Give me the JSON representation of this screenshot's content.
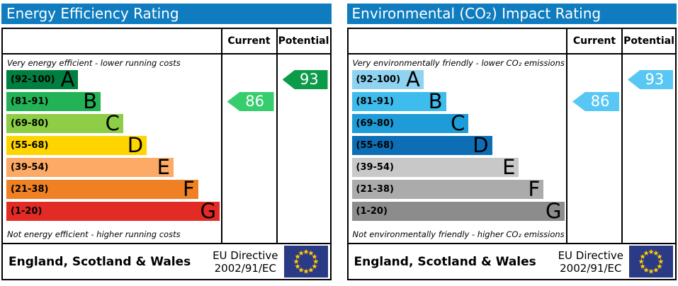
{
  "colors": {
    "title_bar_blue": "#0F7CBF",
    "eu_flag_blue": "#2B3A84",
    "eu_star_yellow": "#FFCC00"
  },
  "panels": [
    {
      "title": "Energy Efficiency Rating",
      "columns": {
        "current": "Current",
        "potential": "Potential"
      },
      "top_note": "Very energy efficient - lower running costs",
      "bottom_note": "Not energy efficient - higher running costs",
      "bands": [
        {
          "grade": "A",
          "range": "(92-100)",
          "color": "#008040",
          "width_pct": 33.5
        },
        {
          "grade": "B",
          "range": "(81-91)",
          "color": "#23B255",
          "width_pct": 44
        },
        {
          "grade": "C",
          "range": "(69-80)",
          "color": "#8DCE46",
          "width_pct": 54.5
        },
        {
          "grade": "D",
          "range": "(55-68)",
          "color": "#FFD500",
          "width_pct": 65.5
        },
        {
          "grade": "E",
          "range": "(39-54)",
          "color": "#FCAA65",
          "width_pct": 78
        },
        {
          "grade": "F",
          "range": "(21-38)",
          "color": "#EF8023",
          "width_pct": 89.5
        },
        {
          "grade": "G",
          "range": "(1-20)",
          "color": "#E32B25",
          "width_pct": 99.5
        }
      ],
      "current": {
        "value": "86",
        "band": "B",
        "color": "#37CD6E"
      },
      "potential": {
        "value": "93",
        "band": "A",
        "color": "#0C9C49"
      },
      "footer": {
        "region": "England, Scotland & Wales",
        "directive_line1": "EU Directive",
        "directive_line2": "2002/91/EC"
      }
    },
    {
      "title": "Environmental (CO₂) Impact Rating",
      "columns": {
        "current": "Current",
        "potential": "Potential"
      },
      "top_note": "Very environmentally friendly - lower CO₂ emissions",
      "bottom_note": "Not environmentally friendly - higher CO₂ emissions",
      "bands": [
        {
          "grade": "A",
          "range": "(92-100)",
          "color": "#8FD3F1",
          "width_pct": 33.5
        },
        {
          "grade": "B",
          "range": "(81-91)",
          "color": "#3FBCEE",
          "width_pct": 44
        },
        {
          "grade": "C",
          "range": "(69-80)",
          "color": "#1E9CD8",
          "width_pct": 54.5
        },
        {
          "grade": "D",
          "range": "(55-68)",
          "color": "#0D6EB5",
          "width_pct": 65.5
        },
        {
          "grade": "E",
          "range": "(39-54)",
          "color": "#C8C8C8",
          "width_pct": 78
        },
        {
          "grade": "F",
          "range": "(21-38)",
          "color": "#ABABAB",
          "width_pct": 89.5
        },
        {
          "grade": "G",
          "range": "(1-20)",
          "color": "#8C8C8C",
          "width_pct": 99.5
        }
      ],
      "current": {
        "value": "86",
        "band": "B",
        "color": "#58C7F3"
      },
      "potential": {
        "value": "93",
        "band": "A",
        "color": "#58C7F3"
      },
      "footer": {
        "region": "England, Scotland & Wales",
        "directive_line1": "EU Directive",
        "directive_line2": "2002/91/EC"
      }
    }
  ],
  "chart_data": [
    {
      "type": "bar",
      "title": "Energy Efficiency Rating",
      "categories": [
        "A",
        "B",
        "C",
        "D",
        "E",
        "F",
        "G"
      ],
      "band_ranges": [
        "92-100",
        "81-91",
        "69-80",
        "55-68",
        "39-54",
        "21-38",
        "1-20"
      ],
      "series": [
        {
          "name": "Current",
          "value": 86,
          "band": "B"
        },
        {
          "name": "Potential",
          "value": 93,
          "band": "A"
        }
      ],
      "top_annotation": "Very energy efficient - lower running costs",
      "bottom_annotation": "Not energy efficient - higher running costs",
      "value_range": [
        1,
        100
      ]
    },
    {
      "type": "bar",
      "title": "Environmental (CO₂) Impact Rating",
      "categories": [
        "A",
        "B",
        "C",
        "D",
        "E",
        "F",
        "G"
      ],
      "band_ranges": [
        "92-100",
        "81-91",
        "69-80",
        "55-68",
        "39-54",
        "21-38",
        "1-20"
      ],
      "series": [
        {
          "name": "Current",
          "value": 86,
          "band": "B"
        },
        {
          "name": "Potential",
          "value": 93,
          "band": "A"
        }
      ],
      "top_annotation": "Very environmentally friendly - lower CO₂ emissions",
      "bottom_annotation": "Not environmentally friendly - higher CO₂ emissions",
      "value_range": [
        1,
        100
      ]
    }
  ]
}
